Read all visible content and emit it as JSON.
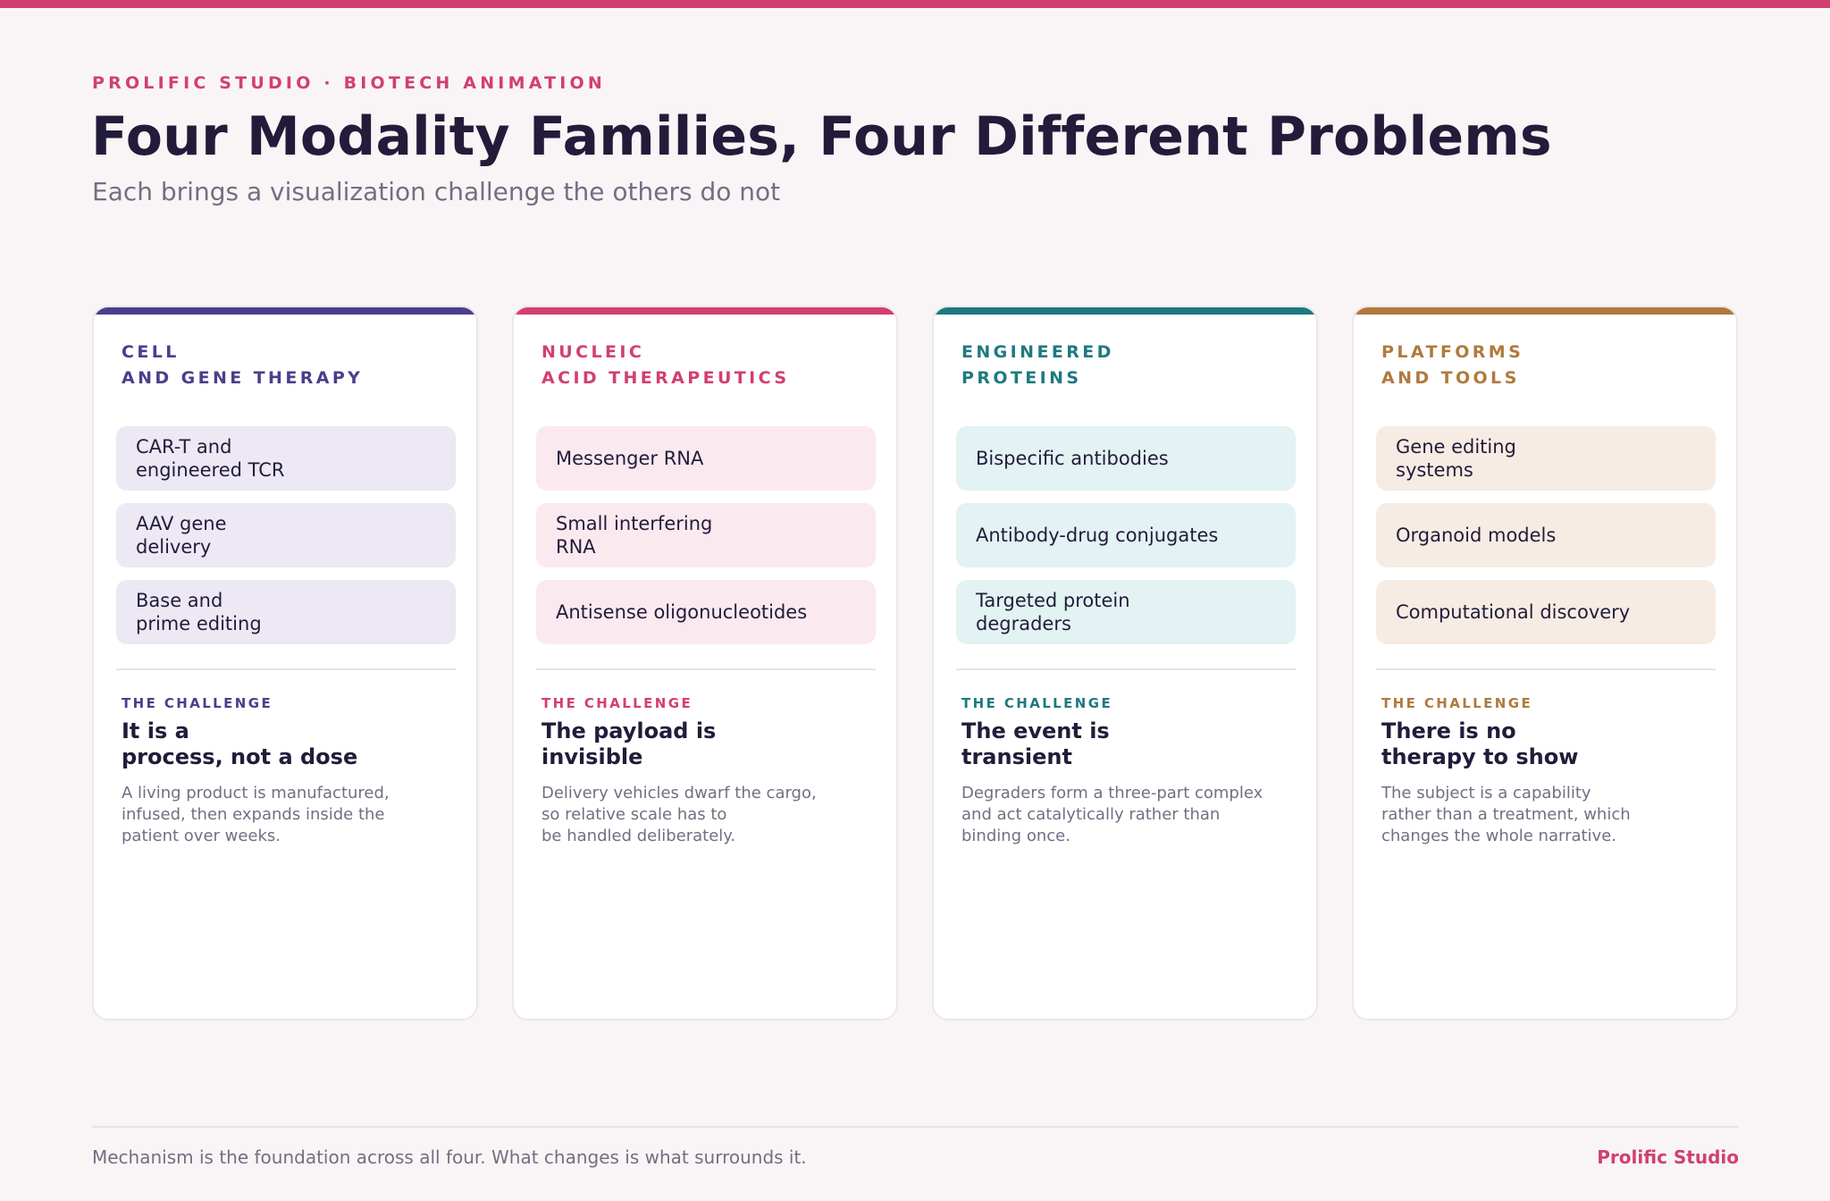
{
  "header": {
    "eyebrow": "PROLIFIC STUDIO · BIOTECH ANIMATION",
    "title": "Four Modality Families, Four Different Problems",
    "subtitle": "Each brings a visualization challenge the others do not"
  },
  "cards": [
    {
      "accent": "#4a3f8c",
      "tint": "#ece8f4",
      "title_lines": [
        "CELL",
        "AND GENE THERAPY"
      ],
      "items": [
        [
          "CAR-T and",
          "engineered TCR"
        ],
        [
          "AAV gene",
          "delivery"
        ],
        [
          "Base and",
          "prime editing"
        ]
      ],
      "challenge_label": "THE CHALLENGE",
      "challenge_title": [
        "It is a",
        "process, not a dose"
      ],
      "challenge_body": [
        "A living product is manufactured,",
        "infused, then expands inside the",
        "patient over weeks."
      ]
    },
    {
      "accent": "#d23f72",
      "tint": "#fbe9f0",
      "title_lines": [
        "NUCLEIC",
        "ACID THERAPEUTICS"
      ],
      "items": [
        [
          "Messenger RNA"
        ],
        [
          "Small interfering",
          "RNA"
        ],
        [
          "Antisense oligonucleotides"
        ]
      ],
      "challenge_label": "THE CHALLENGE",
      "challenge_title": [
        "The payload is",
        "invisible"
      ],
      "challenge_body": [
        "Delivery vehicles dwarf the cargo,",
        "so relative scale has to",
        "be handled deliberately."
      ]
    },
    {
      "accent": "#1e7a80",
      "tint": "#e3f2f3",
      "title_lines": [
        "ENGINEERED",
        "PROTEINS"
      ],
      "items": [
        [
          "Bispecific antibodies"
        ],
        [
          "Antibody-drug conjugates"
        ],
        [
          "Targeted protein",
          "degraders"
        ]
      ],
      "challenge_label": "THE CHALLENGE",
      "challenge_title": [
        "The event is",
        "transient"
      ],
      "challenge_body": [
        "Degraders form a three-part complex",
        "and act catalytically rather than",
        "binding once."
      ]
    },
    {
      "accent": "#b07a3e",
      "tint": "#f6ece3",
      "title_lines": [
        "PLATFORMS",
        "AND TOOLS"
      ],
      "items": [
        [
          "Gene editing",
          "systems"
        ],
        [
          "Organoid models"
        ],
        [
          "Computational discovery"
        ]
      ],
      "challenge_label": "THE CHALLENGE",
      "challenge_title": [
        "There is no",
        "therapy to show"
      ],
      "challenge_body": [
        "The subject is a capability",
        "rather than a treatment, which",
        "changes the whole narrative."
      ]
    }
  ],
  "footer": {
    "note": "Mechanism is the foundation across all four. What changes is what surrounds it.",
    "brand": "Prolific Studio"
  }
}
